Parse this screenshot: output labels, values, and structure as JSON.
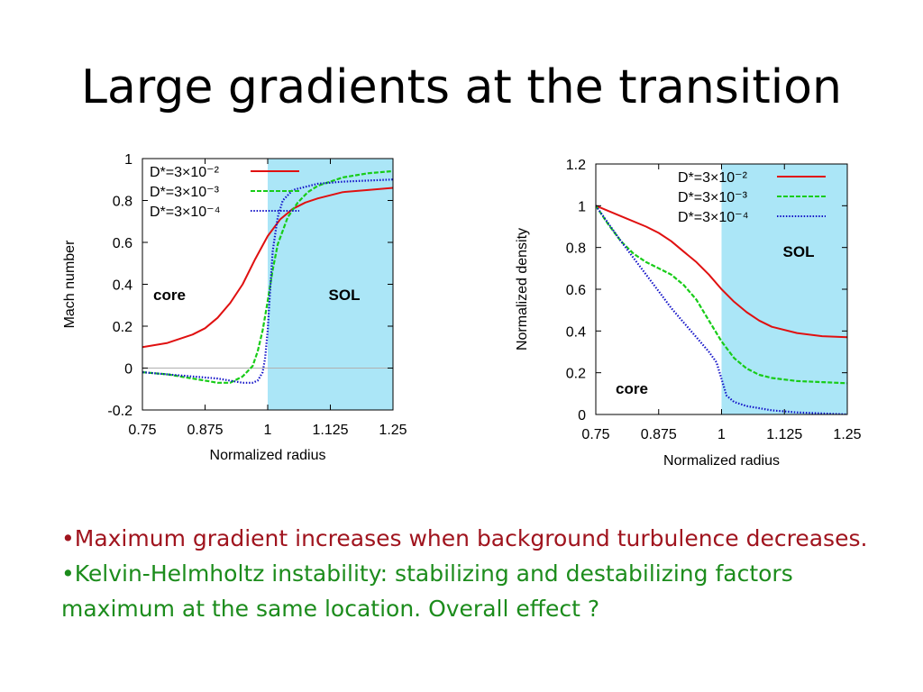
{
  "slide": {
    "title": "Large gradients at the transition",
    "bullets": [
      {
        "text": "•Maximum gradient increases when background turbulence decreases.",
        "color": "#a0141e"
      },
      {
        "text": "•Kelvin-Helmholtz instability: stabilizing and destabilizing factors maximum at the same location. Overall effect ?",
        "color": "#1c8c1c"
      }
    ]
  },
  "colors": {
    "sol_region": "#abe6f7",
    "series_red": "#e01010",
    "series_green": "#18cc18",
    "series_blue": "#1414c8"
  },
  "chart_data": [
    {
      "type": "line",
      "xlabel": "Normalized radius",
      "ylabel": "Mach number",
      "xlim": [
        0.75,
        1.25
      ],
      "ylim": [
        -0.2,
        1
      ],
      "xticks": [
        "0.75",
        "0.875",
        "1",
        "1.125",
        "1.25"
      ],
      "yticks": [
        "-0.2",
        "0",
        "0.2",
        "0.4",
        "0.6",
        "0.8",
        "1"
      ],
      "shaded_region": {
        "x": [
          1,
          1.25
        ],
        "label": "SOL"
      },
      "core_label": "core",
      "zero_line": true,
      "legend_position": "top-right",
      "series": [
        {
          "name": "D*=3×10⁻²",
          "style": "solid",
          "color": "#e01010",
          "x": [
            0.75,
            0.8,
            0.85,
            0.875,
            0.9,
            0.925,
            0.95,
            0.975,
            1,
            1.025,
            1.05,
            1.075,
            1.1,
            1.15,
            1.2,
            1.25
          ],
          "y": [
            0.1,
            0.12,
            0.16,
            0.19,
            0.24,
            0.31,
            0.4,
            0.52,
            0.63,
            0.71,
            0.76,
            0.79,
            0.81,
            0.84,
            0.85,
            0.86
          ]
        },
        {
          "name": "D*=3×10⁻³",
          "style": "dashed",
          "color": "#18cc18",
          "x": [
            0.75,
            0.8,
            0.85,
            0.875,
            0.9,
            0.925,
            0.95,
            0.97,
            0.98,
            0.99,
            1,
            1.01,
            1.02,
            1.04,
            1.06,
            1.08,
            1.1,
            1.15,
            1.2,
            1.25
          ],
          "y": [
            -0.02,
            -0.03,
            -0.05,
            -0.06,
            -0.07,
            -0.07,
            -0.04,
            0.01,
            0.08,
            0.18,
            0.32,
            0.47,
            0.59,
            0.72,
            0.79,
            0.84,
            0.87,
            0.91,
            0.93,
            0.94
          ]
        },
        {
          "name": "D*=3×10⁻⁴",
          "style": "dotted",
          "color": "#1414c8",
          "x": [
            0.75,
            0.8,
            0.85,
            0.9,
            0.95,
            0.97,
            0.98,
            0.99,
            0.995,
            1,
            1.005,
            1.01,
            1.02,
            1.03,
            1.05,
            1.1,
            1.15,
            1.2,
            1.25
          ],
          "y": [
            -0.02,
            -0.03,
            -0.04,
            -0.05,
            -0.07,
            -0.07,
            -0.06,
            -0.02,
            0.05,
            0.18,
            0.38,
            0.56,
            0.72,
            0.8,
            0.85,
            0.88,
            0.89,
            0.895,
            0.9
          ]
        }
      ]
    },
    {
      "type": "line",
      "xlabel": "Normalized radius",
      "ylabel": "Normalized density",
      "xlim": [
        0.75,
        1.25
      ],
      "ylim": [
        0,
        1.2
      ],
      "xticks": [
        "0.75",
        "0.875",
        "1",
        "1.125",
        "1.25"
      ],
      "yticks": [
        "0",
        "0.2",
        "0.4",
        "0.6",
        "0.8",
        "1",
        "1.2"
      ],
      "shaded_region": {
        "x": [
          1,
          1.25
        ],
        "label": "SOL"
      },
      "core_label": "core",
      "zero_line": false,
      "legend_position": "top-right",
      "series": [
        {
          "name": "D*=3×10⁻²",
          "style": "solid",
          "color": "#e01010",
          "x": [
            0.75,
            0.8,
            0.85,
            0.875,
            0.9,
            0.925,
            0.95,
            0.975,
            1,
            1.025,
            1.05,
            1.075,
            1.1,
            1.15,
            1.2,
            1.25
          ],
          "y": [
            1.0,
            0.95,
            0.9,
            0.87,
            0.83,
            0.78,
            0.73,
            0.67,
            0.6,
            0.54,
            0.49,
            0.45,
            0.42,
            0.39,
            0.375,
            0.37
          ]
        },
        {
          "name": "D*=3×10⁻³",
          "style": "dashed",
          "color": "#18cc18",
          "x": [
            0.75,
            0.775,
            0.8,
            0.825,
            0.85,
            0.875,
            0.9,
            0.925,
            0.95,
            0.975,
            1,
            1.025,
            1.05,
            1.075,
            1.1,
            1.15,
            1.2,
            1.25
          ],
          "y": [
            1.0,
            0.91,
            0.83,
            0.77,
            0.73,
            0.7,
            0.67,
            0.62,
            0.55,
            0.45,
            0.35,
            0.27,
            0.22,
            0.19,
            0.175,
            0.16,
            0.155,
            0.15
          ]
        },
        {
          "name": "D*=3×10⁻⁴",
          "style": "dotted",
          "color": "#1414c8",
          "x": [
            0.75,
            0.8,
            0.85,
            0.875,
            0.9,
            0.925,
            0.95,
            0.975,
            0.99,
            1,
            1.01,
            1.025,
            1.05,
            1.1,
            1.15,
            1.2,
            1.25
          ],
          "y": [
            1.0,
            0.83,
            0.67,
            0.59,
            0.51,
            0.44,
            0.37,
            0.3,
            0.25,
            0.17,
            0.09,
            0.06,
            0.04,
            0.02,
            0.01,
            0.005,
            0.0
          ]
        }
      ]
    }
  ]
}
